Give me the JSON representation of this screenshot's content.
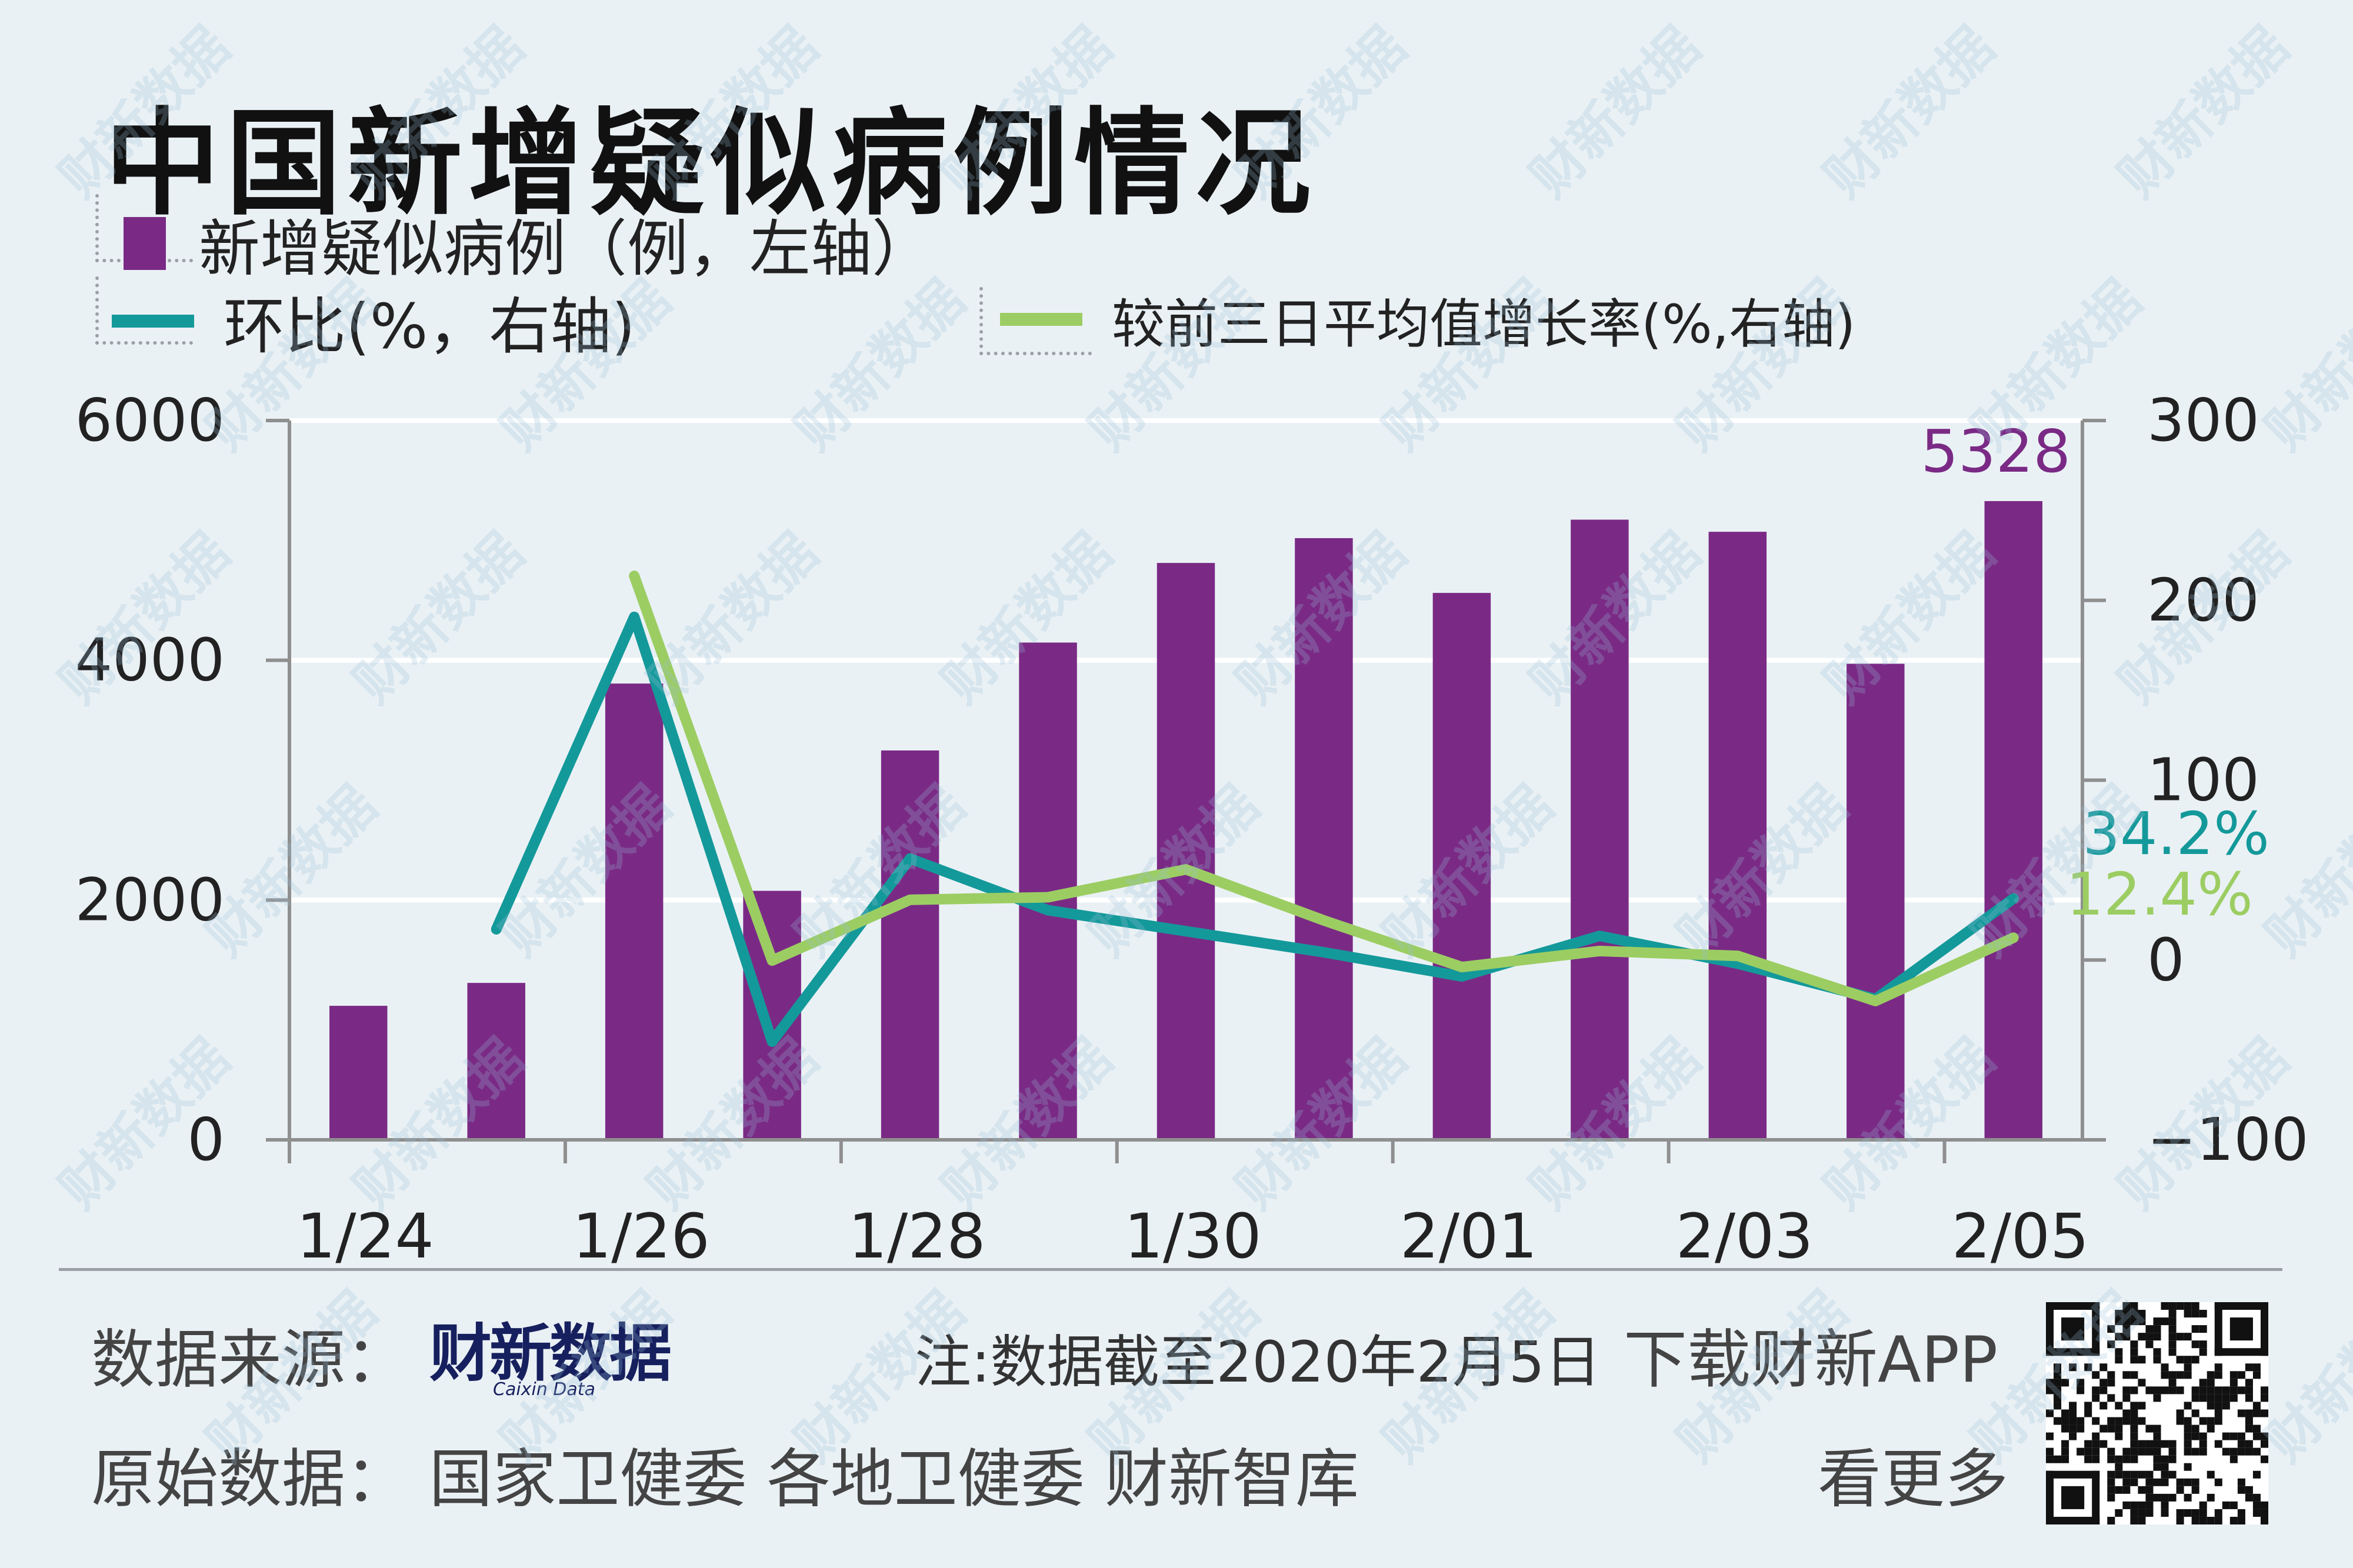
{
  "title": "中国新增疑似病例情况",
  "legend": {
    "bar": "新增疑似病例（例，左轴）",
    "line1": "环比(%，右轴)",
    "line2": "较前三日平均值增长率(%,右轴)"
  },
  "colors": {
    "bar": "#7a2a85",
    "line1": "#14999a",
    "line2": "#9ccd63",
    "grid": "#ffffff",
    "axis": "#8f8f8f"
  },
  "chart_data": {
    "type": "bar",
    "categories": [
      "1/24",
      "1/25",
      "1/26",
      "1/27",
      "1/28",
      "1/29",
      "1/30",
      "1/31",
      "2/01",
      "2/02",
      "2/03",
      "2/04",
      "2/05"
    ],
    "tick_labels": [
      "1/24",
      "1/26",
      "1/28",
      "1/30",
      "2/01",
      "2/03",
      "2/05"
    ],
    "left_axis": {
      "ticks": [
        "6000",
        "4000",
        "2000",
        "0"
      ],
      "range": [
        0,
        6000
      ]
    },
    "right_axis": {
      "ticks": [
        "300",
        "200",
        "100",
        "0",
        "−100"
      ],
      "range": [
        -100,
        300
      ]
    },
    "series": [
      {
        "name": "新增疑似病例（例，左轴）",
        "axis": "left",
        "type": "bar",
        "values": [
          1118,
          1309,
          3806,
          2077,
          3248,
          4148,
          4812,
          5019,
          4562,
          5173,
          5072,
          3971,
          5328
        ]
      },
      {
        "name": "环比(%，右轴)",
        "axis": "right",
        "type": "line",
        "values": [
          null,
          17.1,
          190.8,
          -45.4,
          56.4,
          27.7,
          16.0,
          4.3,
          -9.1,
          13.4,
          -2.0,
          -21.7,
          34.2
        ]
      },
      {
        "name": "较前三日平均值增长率(%,右轴)",
        "axis": "right",
        "type": "line",
        "values": [
          null,
          null,
          213.6,
          -0.3,
          33.5,
          34.9,
          50.4,
          22.0,
          -3.9,
          5.0,
          2.3,
          -22.8,
          12.4
        ]
      }
    ],
    "annotations": [
      {
        "text": "5328",
        "series": 0,
        "index": 12
      },
      {
        "text": "34.2%",
        "series": 1,
        "index": 12
      },
      {
        "text": "12.4%",
        "series": 2,
        "index": 12
      }
    ]
  },
  "footer": {
    "source_label": "数据来源：",
    "brand": "财新数据",
    "brand_sub": "Caixin Data",
    "note": "注:数据截至2020年2月5日",
    "download": "下载财新APP",
    "origin": "原始数据：  国家卫健委  各地卫健委  财新智库",
    "more": "看更多"
  },
  "watermark": "财新数据"
}
